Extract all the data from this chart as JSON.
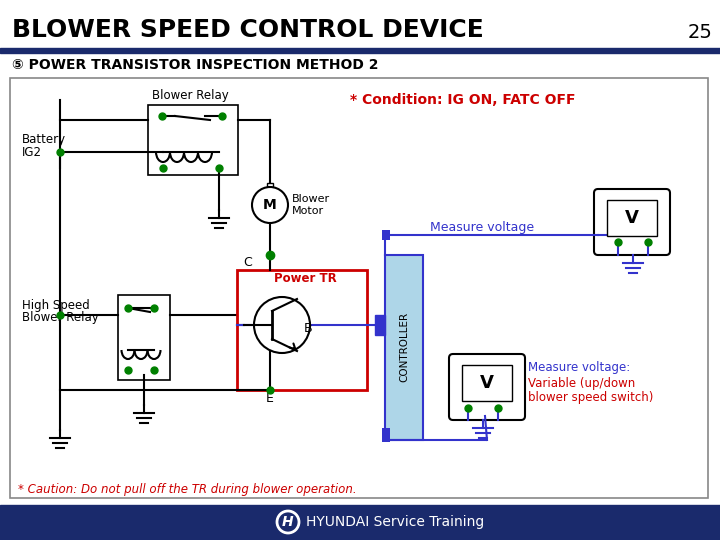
{
  "title": "BLOWER SPEED CONTROL DEVICE",
  "page_number": "25",
  "subtitle": "⑤ POWER TRANSISTOR INSPECTION METHOD 2",
  "condition_text": "* Condition: IG ON, FATC OFF",
  "caution_text": "* Caution: Do not pull off the TR during blower operation.",
  "footer_text": "HYUNDAI Service Training",
  "measure_voltage_top": "Measure voltage",
  "measure_voltage_bottom_line1": "Measure voltage:",
  "measure_voltage_bottom_line2": "Variable (up/down",
  "measure_voltage_bottom_line3": "blower speed switch)",
  "bg_color": "#ffffff",
  "title_color": "#000000",
  "subtitle_color": "#000000",
  "condition_color": "#cc0000",
  "caution_color": "#cc0000",
  "wire_color": "#000000",
  "blue_wire_color": "#3333cc",
  "green_dot_color": "#008000",
  "power_tr_box_color": "#cc0000",
  "controller_fill": "#aed6e8",
  "header_bar_color": "#1a2a6c",
  "footer_bar_color": "#1a2a6c",
  "measure_voltage_color": "#3333cc",
  "measure_voltage_bottom_color": "#cc0000",
  "diagram_bg": "#ffffff"
}
